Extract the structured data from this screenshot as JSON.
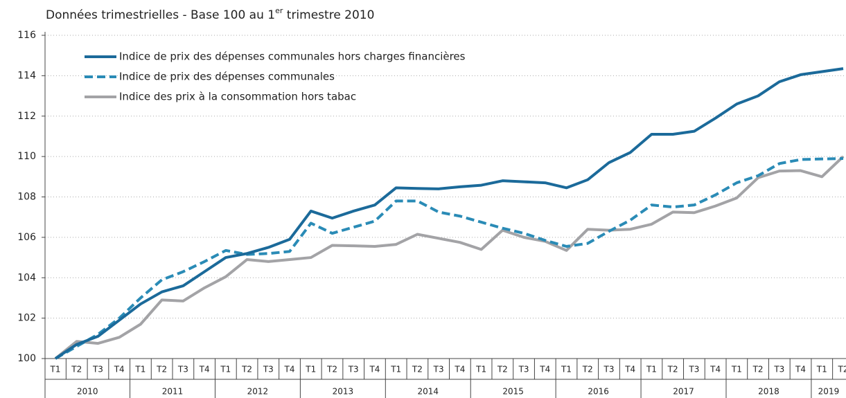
{
  "chart_data": {
    "type": "line",
    "title": [
      "Données trimestrielles - Base 100 au 1",
      "er",
      " trimestre 2010"
    ],
    "categories": [
      "T1",
      "T2",
      "T3",
      "T4",
      "T1",
      "T2",
      "T3",
      "T4",
      "T1",
      "T2",
      "T3",
      "T4",
      "T1",
      "T2",
      "T3",
      "T4",
      "T1",
      "T2",
      "T3",
      "T4",
      "T1",
      "T2",
      "T3",
      "T4",
      "T1",
      "T2",
      "T3",
      "T4",
      "T1",
      "T2",
      "T3",
      "T4",
      "T1",
      "T2",
      "T3",
      "T4",
      "T1",
      "T2"
    ],
    "years": [
      "2010",
      "2011",
      "2012",
      "2013",
      "2014",
      "2015",
      "2016",
      "2017",
      "2018",
      "2019"
    ],
    "ylim": [
      100,
      116
    ],
    "yticks": [
      100,
      102,
      104,
      106,
      108,
      110,
      112,
      114,
      116
    ],
    "grid": true,
    "legend": "top-left",
    "series": [
      {
        "name": "Indice de prix des dépenses communales hors charges financières",
        "color": "#1b6a9a",
        "style": "solid",
        "values": [
          100,
          100.7,
          101.1,
          101.9,
          102.7,
          103.3,
          103.6,
          104.3,
          105.0,
          105.2,
          105.5,
          105.9,
          107.3,
          106.95,
          107.3,
          107.6,
          108.45,
          108.42,
          108.4,
          108.5,
          108.58,
          108.8,
          108.75,
          108.7,
          108.45,
          108.85,
          109.7,
          110.2,
          111.1,
          111.1,
          111.25,
          111.9,
          112.6,
          113.0,
          113.7,
          114.05,
          114.2,
          114.35
        ]
      },
      {
        "name": "Indice de prix des dépenses communales",
        "color": "#2a8bb6",
        "style": "dashed",
        "values": [
          100,
          100.6,
          101.2,
          102.0,
          103.0,
          103.9,
          104.3,
          104.8,
          105.35,
          105.15,
          105.2,
          105.3,
          106.7,
          106.2,
          106.5,
          106.8,
          107.8,
          107.8,
          107.25,
          107.05,
          106.75,
          106.45,
          106.2,
          105.85,
          105.55,
          105.7,
          106.3,
          106.85,
          107.6,
          107.5,
          107.6,
          108.1,
          108.7,
          109.05,
          109.65,
          109.85,
          109.88,
          109.9
        ]
      },
      {
        "name": "Indice des prix à la consommation hors tabac",
        "color": "#a3a3a6",
        "style": "solid",
        "values": [
          100,
          100.85,
          100.75,
          101.05,
          101.7,
          102.9,
          102.85,
          103.5,
          104.05,
          104.9,
          104.8,
          104.9,
          105.0,
          105.6,
          105.58,
          105.55,
          105.65,
          106.15,
          105.95,
          105.75,
          105.4,
          106.35,
          106.0,
          105.8,
          105.35,
          106.4,
          106.35,
          106.4,
          106.65,
          107.25,
          107.22,
          107.55,
          107.95,
          108.95,
          109.28,
          109.3,
          109.0,
          110.0
        ]
      }
    ]
  }
}
